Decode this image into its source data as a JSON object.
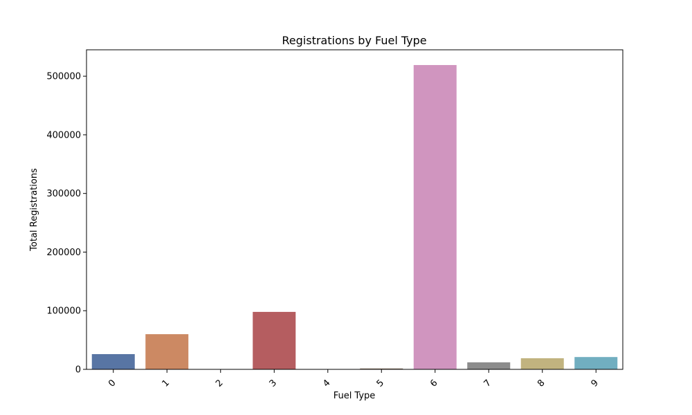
{
  "chart_data": {
    "type": "bar",
    "title": "Registrations by Fuel Type",
    "xlabel": "Fuel Type",
    "ylabel": "Total Registrations",
    "categories": [
      "0",
      "1",
      "2",
      "3",
      "4",
      "5",
      "6",
      "7",
      "8",
      "9"
    ],
    "values": [
      26000,
      60000,
      300,
      98000,
      200,
      1500,
      519000,
      12000,
      19000,
      21000
    ],
    "colors": [
      "#5875a4",
      "#cc8963",
      "#5f9e6e",
      "#b55d60",
      "#857aab",
      "#8d7866",
      "#d095bf",
      "#8c8c8c",
      "#c1b37f",
      "#71aec0"
    ],
    "ylim": [
      0,
      545000
    ],
    "yticks": [
      0,
      100000,
      200000,
      300000,
      400000,
      500000
    ],
    "ytick_labels": [
      "0",
      "100000",
      "200000",
      "300000",
      "400000",
      "500000"
    ],
    "x_tick_rotation": 45,
    "grid": false,
    "legend": "none"
  }
}
